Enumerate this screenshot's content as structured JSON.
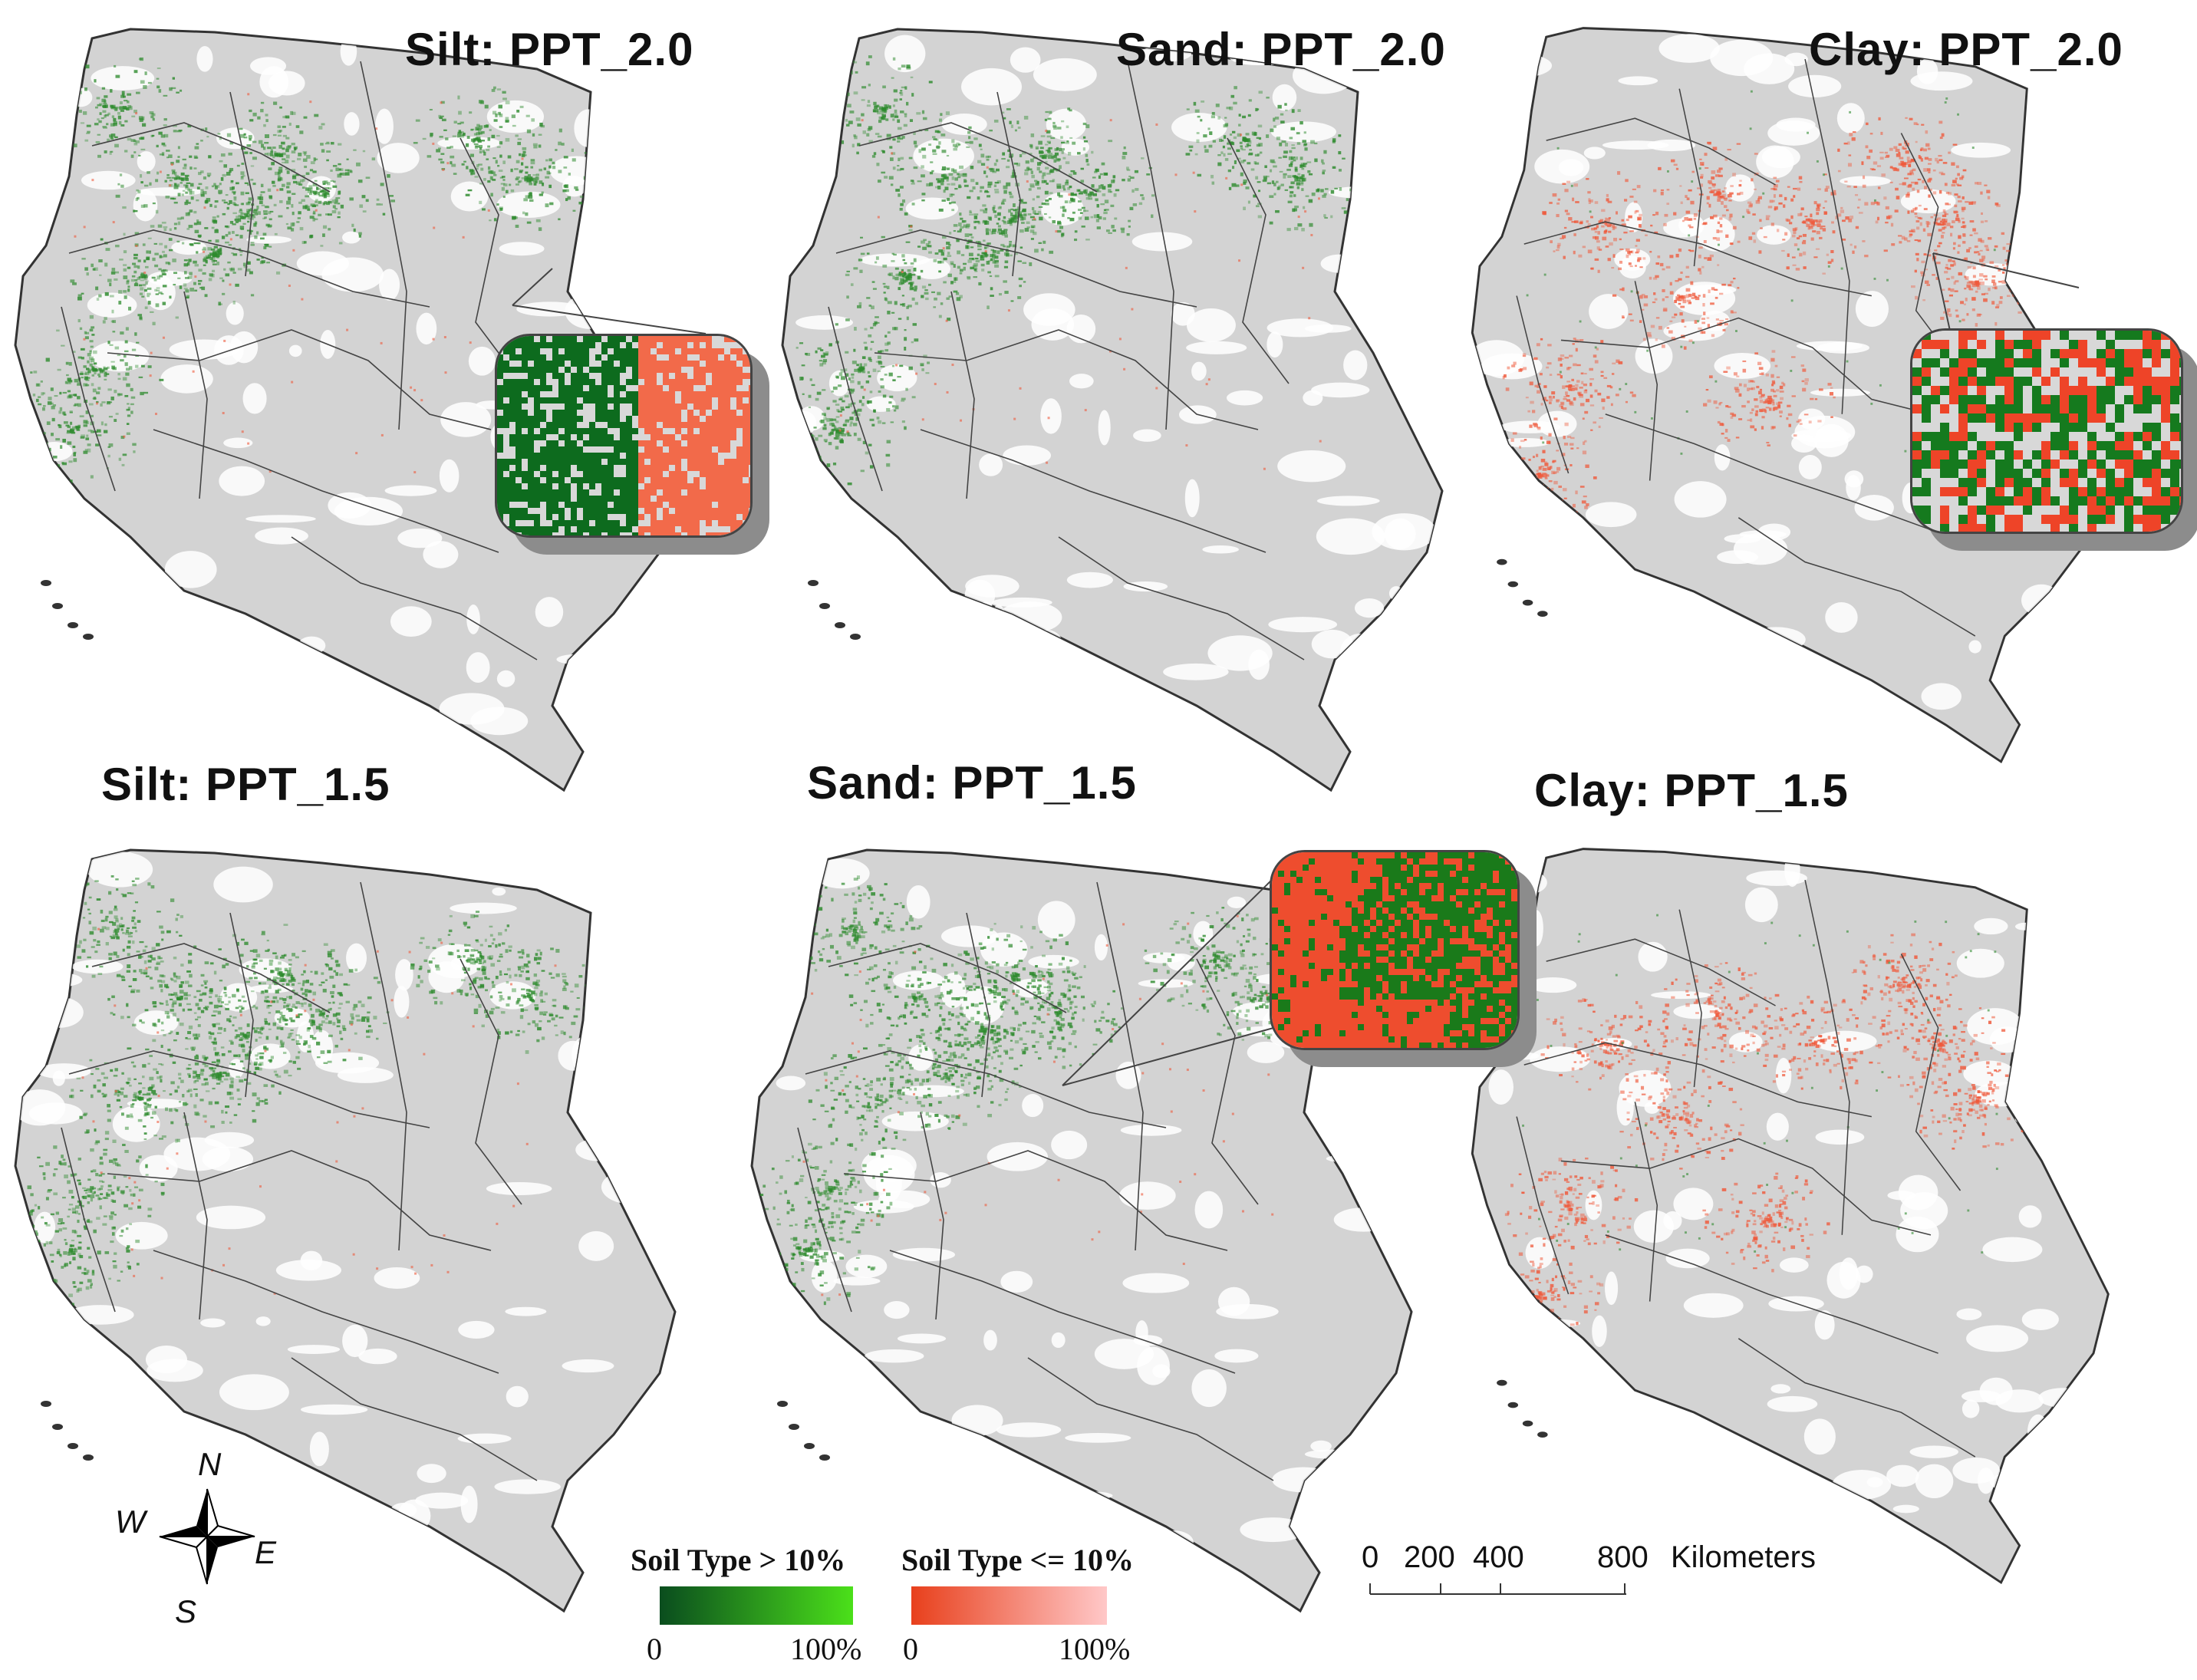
{
  "panels": [
    {
      "title": "Silt: PPT_2.0",
      "dominant": "green",
      "inset": "silt"
    },
    {
      "title": "Sand: PPT_2.0",
      "dominant": "green",
      "inset": null
    },
    {
      "title": "Clay: PPT_2.0",
      "dominant": "red",
      "inset": "clay"
    },
    {
      "title": "Silt: PPT_1.5",
      "dominant": "green",
      "inset": null
    },
    {
      "title": "Sand: PPT_1.5",
      "dominant": "green",
      "inset": "sand"
    },
    {
      "title": "Clay: PPT_1.5",
      "dominant": "red",
      "inset": null
    }
  ],
  "legend": {
    "above": {
      "label": "Soil Type > 10%",
      "min": "0",
      "max": "100%",
      "color_low": "#0a4d1e",
      "color_high": "#4be01a"
    },
    "below": {
      "label": "Soil Type <= 10%",
      "min": "0",
      "max": "100%",
      "color_low": "#e8401c",
      "color_high": "#ffc8c8"
    }
  },
  "scale_bar": {
    "ticks": [
      "0",
      "200",
      "400",
      "800"
    ],
    "unit": "Kilometers"
  },
  "compass": {
    "n": "N",
    "s": "S",
    "e": "E",
    "w": "W"
  },
  "colors": {
    "land": "#d3d3d3",
    "green": "#2e8b2e",
    "red": "#ef5a3c",
    "boundary": "#333333"
  }
}
